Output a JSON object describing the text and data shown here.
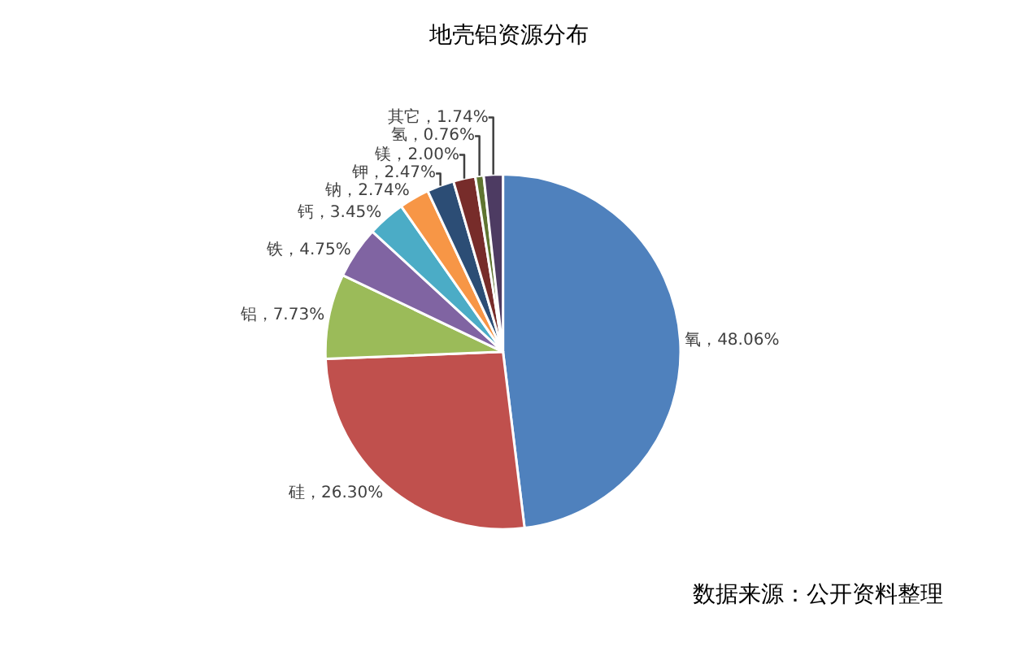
{
  "chart_data": {
    "type": "pie",
    "title": "地壳铝资源分布",
    "categories": [
      "氧",
      "硅",
      "铝",
      "铁",
      "钙",
      "钠",
      "钾",
      "镁",
      "氢",
      "其它"
    ],
    "values": [
      48.06,
      26.3,
      7.73,
      4.75,
      3.45,
      2.74,
      2.47,
      2.0,
      0.76,
      1.74
    ],
    "value_labels": [
      "48.06%",
      "26.30%",
      "7.73%",
      "4.75%",
      "3.45%",
      "2.74%",
      "2.47%",
      "2.00%",
      "0.76%",
      "1.74%"
    ],
    "colors": [
      "#4f81bd",
      "#c0504d",
      "#9bbb59",
      "#8064a2",
      "#4bacc6",
      "#f79646",
      "#2c4d75",
      "#772c2a",
      "#5f7530",
      "#4d3b62"
    ],
    "annotations": [
      "数据来源：公开资料整理"
    ],
    "legend": false
  }
}
